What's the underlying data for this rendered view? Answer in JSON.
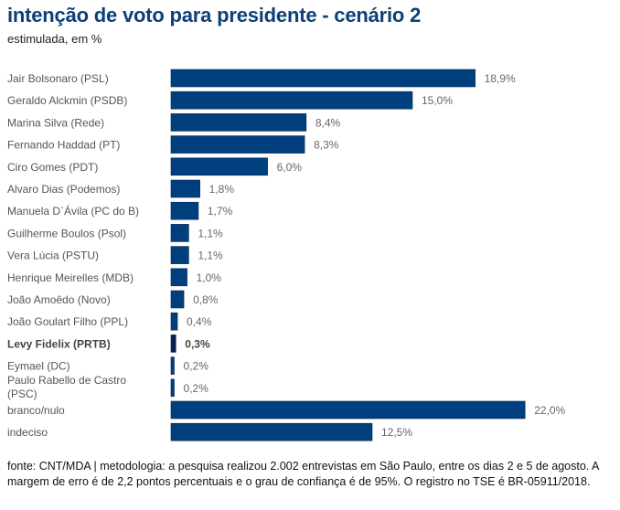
{
  "chart_data": {
    "type": "bar",
    "orientation": "horizontal",
    "title": "intenção de voto para presidente - cenário 2",
    "subtitle": "estimulada, em %",
    "xlabel": "",
    "ylabel": "",
    "xlim": [
      0,
      25
    ],
    "grid": false,
    "bar_color": "#003f7d",
    "highlight_color": "#0a2150",
    "highlight_category": "Levy Fidelix (PRTB)",
    "categories": [
      [
        "Jair Bolsonaro (PSL)"
      ],
      [
        "Geraldo Alckmin (PSDB)"
      ],
      [
        "Marina Silva (Rede)"
      ],
      [
        "Fernando Haddad (PT)"
      ],
      [
        "Ciro Gomes (PDT)"
      ],
      [
        "Alvaro Dias (Podemos)"
      ],
      [
        "Manuela D`Ávila (PC do B)"
      ],
      [
        "Guilherme Boulos (Psol)"
      ],
      [
        "Vera Lúcia (PSTU)"
      ],
      [
        "Henrique Meirelles (MDB)"
      ],
      [
        "João Amoêdo (Novo)"
      ],
      [
        "João Goulart Filho (PPL)"
      ],
      [
        "Levy Fidelix (PRTB)"
      ],
      [
        "Eymael (DC)"
      ],
      [
        "Paulo Rabello de Castro",
        "(PSC)"
      ],
      [
        "branco/nulo"
      ],
      [
        "indeciso"
      ]
    ],
    "values": [
      18.9,
      15.0,
      8.4,
      8.3,
      6.0,
      1.8,
      1.7,
      1.1,
      1.1,
      1.0,
      0.8,
      0.4,
      0.3,
      0.2,
      0.2,
      22.0,
      12.5
    ],
    "value_labels": [
      "18,9%",
      "15,0%",
      "8,4%",
      "8,3%",
      "6,0%",
      "1,8%",
      "1,7%",
      "1,1%",
      "1,1%",
      "1,0%",
      "0,8%",
      "0,4%",
      "0,3%",
      "0,2%",
      "0,2%",
      "22,0%",
      "12,5%"
    ]
  },
  "footer": "fonte: CNT/MDA | metodologia: a pesquisa realizou 2.002 entrevistas em São Paulo, entre os dias 2 e 5 de agosto. A margem de erro é de 2,2 pontos percentuais e o grau de confiança é de 95%. O registro no TSE é BR-05911/2018."
}
